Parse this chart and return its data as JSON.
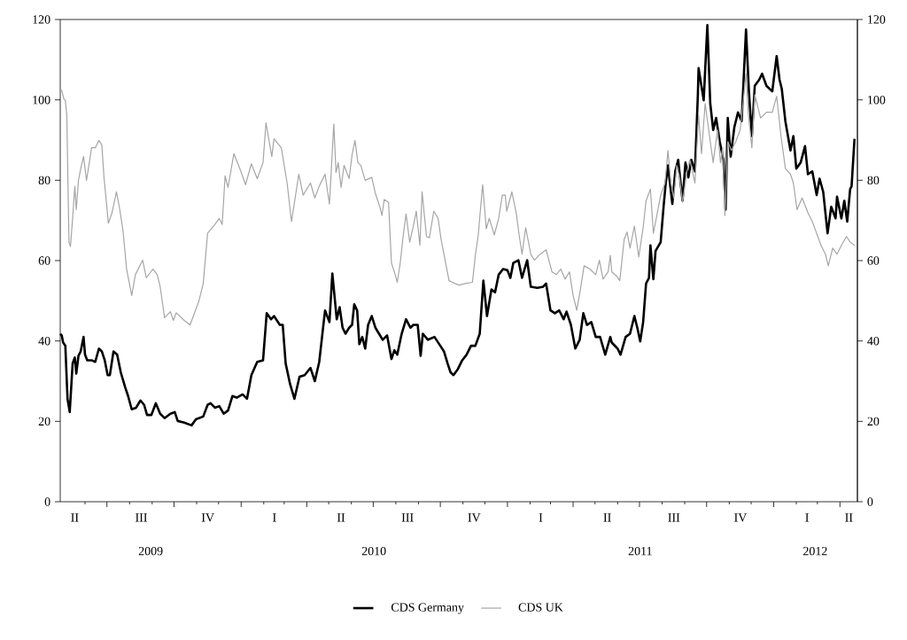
{
  "chart_data": {
    "type": "line",
    "xlim": [
      "2009-04-28",
      "2012-04-25"
    ],
    "annotations": [
      "II",
      "III",
      "IV",
      "I",
      "II",
      "III",
      "IV",
      "I",
      "II",
      "III",
      "IV",
      "I",
      "II"
    ],
    "xticks": [
      {
        "value": "2009-08-30",
        "label": "2009"
      },
      {
        "value": "2010-07-02",
        "label": "2010"
      },
      {
        "value": "2011-07-02",
        "label": "2011"
      },
      {
        "value": "2012-02-27",
        "label": "2012"
      },
      {
        "value": "2009-06-01",
        "label": null
      },
      {
        "value": "2009-07-01",
        "label": null
      },
      {
        "value": "2009-08-01",
        "label": null
      },
      {
        "value": "2009-09-01",
        "label": null
      },
      {
        "value": "2009-10-01",
        "label": null
      },
      {
        "value": "2009-11-01",
        "label": null
      },
      {
        "value": "2009-12-01",
        "label": null
      },
      {
        "value": "2010-01-01",
        "label": null
      },
      {
        "value": "2010-02-01",
        "label": null
      },
      {
        "value": "2010-03-01",
        "label": null
      },
      {
        "value": "2010-04-01",
        "label": null
      },
      {
        "value": "2010-05-01",
        "label": null
      },
      {
        "value": "2010-06-01",
        "label": null
      },
      {
        "value": "2010-07-01",
        "label": null
      },
      {
        "value": "2010-08-01",
        "label": null
      },
      {
        "value": "2010-09-01",
        "label": null
      },
      {
        "value": "2010-10-01",
        "label": null
      },
      {
        "value": "2010-11-01",
        "label": null
      },
      {
        "value": "2010-12-01",
        "label": null
      },
      {
        "value": "2011-01-01",
        "label": null
      },
      {
        "value": "2011-02-01",
        "label": null
      },
      {
        "value": "2011-03-01",
        "label": null
      },
      {
        "value": "2011-04-01",
        "label": null
      },
      {
        "value": "2011-05-01",
        "label": null
      },
      {
        "value": "2011-06-01",
        "label": null
      },
      {
        "value": "2011-07-01",
        "label": null
      },
      {
        "value": "2011-08-01",
        "label": null
      },
      {
        "value": "2011-09-01",
        "label": null
      },
      {
        "value": "2011-10-01",
        "label": null
      },
      {
        "value": "2011-11-01",
        "label": null
      },
      {
        "value": "2011-12-01",
        "label": null
      },
      {
        "value": "2012-01-01",
        "label": null
      },
      {
        "value": "2012-02-01",
        "label": null
      },
      {
        "value": "2012-03-01",
        "label": null
      },
      {
        "value": "2012-04-01",
        "label": null
      }
    ],
    "ylim": [
      0,
      120
    ],
    "yticks": [
      0,
      20,
      40,
      60,
      80,
      100,
      120
    ],
    "y2lim": [
      0,
      120
    ],
    "y2ticks": [
      0,
      20,
      40,
      60,
      80,
      100,
      120
    ],
    "legend": "bottom",
    "series": [
      {
        "name": "CDS Germany",
        "color": "#000000",
        "x": [
          "2009-04-28",
          "2009-04-30",
          "2009-05-02",
          "2009-05-05",
          "2009-05-08",
          "2009-05-11",
          "2009-05-15",
          "2009-05-18",
          "2009-05-20",
          "2009-05-23",
          "2009-05-26",
          "2009-05-30",
          "2009-06-01",
          "2009-06-04",
          "2009-06-10",
          "2009-06-15",
          "2009-06-20",
          "2009-06-24",
          "2009-06-28",
          "2009-07-02",
          "2009-07-05",
          "2009-07-10",
          "2009-07-15",
          "2009-07-20",
          "2009-07-26",
          "2009-07-30",
          "2009-08-04",
          "2009-08-10",
          "2009-08-16",
          "2009-08-21",
          "2009-08-25",
          "2009-08-31",
          "2009-09-06",
          "2009-09-12",
          "2009-09-18",
          "2009-09-26",
          "2009-10-02",
          "2009-10-06",
          "2009-10-15",
          "2009-10-25",
          "2009-10-31",
          "2009-11-10",
          "2009-11-16",
          "2009-11-20",
          "2009-11-26",
          "2009-12-02",
          "2009-12-08",
          "2009-12-14",
          "2009-12-20",
          "2009-12-26",
          "2010-01-03",
          "2010-01-09",
          "2010-01-15",
          "2010-01-23",
          "2010-01-31",
          "2010-02-05",
          "2010-02-11",
          "2010-02-15",
          "2010-02-23",
          "2010-02-27",
          "2010-03-03",
          "2010-03-09",
          "2010-03-15",
          "2010-03-22",
          "2010-03-29",
          "2010-04-06",
          "2010-04-12",
          "2010-04-18",
          "2010-04-26",
          "2010-05-02",
          "2010-05-06",
          "2010-05-12",
          "2010-05-16",
          "2010-05-20",
          "2010-05-24",
          "2010-05-29",
          "2010-06-02",
          "2010-06-05",
          "2010-06-09",
          "2010-06-12",
          "2010-06-16",
          "2010-06-20",
          "2010-06-24",
          "2010-06-29",
          "2010-07-04",
          "2010-07-09",
          "2010-07-14",
          "2010-07-20",
          "2010-07-26",
          "2010-07-30",
          "2010-08-03",
          "2010-08-09",
          "2010-08-15",
          "2010-08-21",
          "2010-08-25",
          "2010-08-31",
          "2010-09-04",
          "2010-09-07",
          "2010-09-14",
          "2010-09-23",
          "2010-10-01",
          "2010-10-06",
          "2010-10-11",
          "2010-10-15",
          "2010-10-19",
          "2010-10-25",
          "2010-10-31",
          "2010-11-06",
          "2010-11-12",
          "2010-11-18",
          "2010-11-24",
          "2010-11-29",
          "2010-12-04",
          "2010-12-10",
          "2010-12-15",
          "2010-12-20",
          "2010-12-26",
          "2011-01-01",
          "2011-01-05",
          "2011-01-09",
          "2011-01-16",
          "2011-01-21",
          "2011-01-28",
          "2011-02-02",
          "2011-02-11",
          "2011-02-19",
          "2011-02-23",
          "2011-03-01",
          "2011-03-07",
          "2011-03-13",
          "2011-03-19",
          "2011-03-23",
          "2011-03-29",
          "2011-04-04",
          "2011-04-10",
          "2011-04-15",
          "2011-04-20",
          "2011-04-26",
          "2011-05-02",
          "2011-05-08",
          "2011-05-15",
          "2011-05-22",
          "2011-05-24",
          "2011-06-01",
          "2011-06-05",
          "2011-06-12",
          "2011-06-18",
          "2011-06-24",
          "2011-06-28",
          "2011-07-02",
          "2011-07-06",
          "2011-07-10",
          "2011-07-14",
          "2011-07-16",
          "2011-07-20",
          "2011-07-23",
          "2011-07-30",
          "2011-08-03",
          "2011-08-06",
          "2011-08-09",
          "2011-08-15",
          "2011-08-19",
          "2011-08-23",
          "2011-08-29",
          "2011-09-02",
          "2011-09-06",
          "2011-09-10",
          "2011-09-15",
          "2011-09-19",
          "2011-09-20",
          "2011-09-27",
          "2011-10-02",
          "2011-10-06",
          "2011-10-10",
          "2011-10-14",
          "2011-10-19",
          "2011-10-24",
          "2011-10-27",
          "2011-10-30",
          "2011-11-03",
          "2011-11-08",
          "2011-11-13",
          "2011-11-18",
          "2011-11-24",
          "2011-11-28",
          "2011-12-02",
          "2011-12-06",
          "2011-12-12",
          "2011-12-16",
          "2011-12-22",
          "2011-12-30",
          "2012-01-05",
          "2012-01-09",
          "2012-01-12",
          "2012-01-17",
          "2012-01-24",
          "2012-01-28",
          "2012-02-01",
          "2012-02-07",
          "2012-02-13",
          "2012-02-17",
          "2012-02-23",
          "2012-02-29",
          "2012-03-04",
          "2012-03-09",
          "2012-03-15",
          "2012-03-20",
          "2012-03-26",
          "2012-03-28",
          "2012-04-03",
          "2012-04-07",
          "2012-04-11",
          "2012-04-15",
          "2012-04-17",
          "2012-04-21"
        ],
        "values": [
          41.8,
          41.4,
          39.6,
          38.8,
          25.6,
          22.3,
          34.4,
          35.9,
          31.9,
          36.3,
          37.4,
          41.0,
          36.6,
          35.2,
          35.2,
          34.8,
          38.1,
          37.4,
          35.2,
          31.5,
          31.5,
          37.4,
          36.6,
          32.2,
          28.5,
          26.3,
          23.0,
          23.4,
          25.2,
          24.1,
          21.6,
          21.6,
          24.5,
          21.9,
          20.8,
          21.9,
          22.3,
          20.1,
          19.7,
          19.0,
          20.5,
          21.2,
          24.1,
          24.5,
          23.4,
          23.8,
          21.9,
          22.7,
          26.3,
          25.9,
          26.7,
          25.6,
          31.5,
          34.8,
          35.2,
          46.9,
          45.4,
          46.2,
          44.0,
          44.0,
          34.4,
          29.3,
          25.6,
          31.1,
          31.5,
          33.3,
          30.0,
          34.8,
          47.6,
          44.7,
          56.8,
          45.4,
          48.4,
          43.3,
          41.8,
          43.3,
          44.0,
          49.1,
          47.6,
          39.2,
          41.0,
          38.1,
          44.0,
          46.2,
          43.3,
          41.8,
          40.3,
          41.4,
          35.5,
          37.7,
          36.6,
          41.8,
          45.4,
          43.3,
          44.0,
          44.0,
          36.3,
          41.8,
          40.3,
          41.0,
          38.8,
          37.4,
          34.4,
          32.2,
          31.5,
          33.0,
          35.2,
          36.6,
          38.8,
          38.8,
          41.8,
          55.0,
          46.2,
          52.8,
          52.1,
          56.5,
          57.9,
          57.6,
          55.7,
          59.4,
          60.1,
          55.7,
          60.1,
          53.5,
          53.2,
          53.5,
          54.3,
          47.6,
          46.9,
          47.6,
          45.4,
          47.3,
          44.0,
          38.1,
          40.3,
          46.9,
          44.0,
          44.7,
          41.0,
          41.0,
          36.6,
          41.0,
          39.6,
          38.1,
          36.6,
          41.0,
          41.8,
          46.2,
          43.3,
          39.9,
          44.7,
          54.3,
          55.7,
          63.8,
          55.4,
          62.4,
          64.6,
          73.4,
          79.3,
          83.7,
          74.1,
          82.2,
          85.1,
          74.9,
          84.4,
          80.7,
          85.1,
          82.2,
          101.3,
          107.9,
          99.9,
          118.6,
          99.1,
          92.5,
          95.5,
          89.6,
          85.1,
          72.7,
          95.5,
          85.9,
          93.2,
          96.9,
          94.7,
          117.5,
          102.1,
          91.0,
          103.5,
          105.0,
          106.5,
          103.5,
          102.1,
          110.9,
          105.0,
          102.8,
          94.7,
          87.4,
          91.0,
          82.9,
          84.4,
          88.5,
          81.5,
          82.2,
          76.3,
          80.4,
          77.1,
          66.8,
          73.4,
          70.5,
          75.9,
          70.5,
          74.9,
          69.7,
          77.8,
          78.5,
          90.3
        ]
      },
      {
        "name": "CDS UK",
        "color": "#a6a6a6",
        "x": [
          "2009-04-28",
          "2009-04-30",
          "2009-05-03",
          "2009-05-05",
          "2009-05-07",
          "2009-05-10",
          "2009-05-12",
          "2009-05-15",
          "2009-05-18",
          "2009-05-20",
          "2009-05-23",
          "2009-05-27",
          "2009-05-30",
          "2009-06-03",
          "2009-06-05",
          "2009-06-10",
          "2009-06-15",
          "2009-06-20",
          "2009-06-24",
          "2009-06-27",
          "2009-07-03",
          "2009-07-08",
          "2009-07-14",
          "2009-07-18",
          "2009-07-23",
          "2009-07-28",
          "2009-08-04",
          "2009-08-09",
          "2009-08-19",
          "2009-08-24",
          "2009-09-02",
          "2009-09-08",
          "2009-09-12",
          "2009-09-18",
          "2009-09-26",
          "2009-09-30",
          "2009-10-04",
          "2009-10-15",
          "2009-10-23",
          "2009-11-04",
          "2009-11-10",
          "2009-11-16",
          "2009-11-26",
          "2009-12-02",
          "2009-12-06",
          "2009-12-10",
          "2009-12-14",
          "2009-12-22",
          "2009-12-30",
          "2010-01-07",
          "2010-01-15",
          "2010-01-23",
          "2010-01-31",
          "2010-02-04",
          "2010-02-12",
          "2010-02-15",
          "2010-02-25",
          "2010-03-05",
          "2010-03-11",
          "2010-03-21",
          "2010-03-27",
          "2010-04-06",
          "2010-04-12",
          "2010-04-18",
          "2010-04-26",
          "2010-05-02",
          "2010-05-08",
          "2010-05-11",
          "2010-05-14",
          "2010-05-18",
          "2010-05-22",
          "2010-05-29",
          "2010-06-02",
          "2010-06-06",
          "2010-06-10",
          "2010-06-14",
          "2010-06-20",
          "2010-06-29",
          "2010-07-04",
          "2010-07-10",
          "2010-07-13",
          "2010-07-16",
          "2010-07-22",
          "2010-07-26",
          "2010-07-30",
          "2010-08-03",
          "2010-08-07",
          "2010-08-11",
          "2010-08-15",
          "2010-08-20",
          "2010-08-25",
          "2010-08-29",
          "2010-09-03",
          "2010-09-06",
          "2010-09-12",
          "2010-09-16",
          "2010-09-22",
          "2010-09-28",
          "2010-10-02",
          "2010-10-09",
          "2010-10-13",
          "2010-10-21",
          "2010-10-27",
          "2010-11-04",
          "2010-11-14",
          "2010-11-18",
          "2010-11-22",
          "2010-11-28",
          "2010-12-03",
          "2010-12-07",
          "2010-12-14",
          "2010-12-20",
          "2010-12-25",
          "2010-12-29",
          "2010-12-31",
          "2011-01-07",
          "2011-01-13",
          "2011-01-17",
          "2011-01-21",
          "2011-01-26",
          "2011-02-02",
          "2011-02-07",
          "2011-02-13",
          "2011-02-23",
          "2011-03-03",
          "2011-03-09",
          "2011-03-15",
          "2011-03-21",
          "2011-03-27",
          "2011-04-01",
          "2011-04-06",
          "2011-04-11",
          "2011-04-16",
          "2011-04-24",
          "2011-05-02",
          "2011-05-07",
          "2011-05-12",
          "2011-05-19",
          "2011-05-22",
          "2011-05-24",
          "2011-05-31",
          "2011-06-04",
          "2011-06-10",
          "2011-06-14",
          "2011-06-18",
          "2011-06-24",
          "2011-06-30",
          "2011-07-06",
          "2011-07-10",
          "2011-07-16",
          "2011-07-20",
          "2011-07-24",
          "2011-07-30",
          "2011-08-05",
          "2011-08-09",
          "2011-08-13",
          "2011-08-17",
          "2011-08-21",
          "2011-08-25",
          "2011-08-29",
          "2011-09-04",
          "2011-09-08",
          "2011-09-15",
          "2011-09-20",
          "2011-09-24",
          "2011-09-29",
          "2011-10-05",
          "2011-10-10",
          "2011-10-16",
          "2011-10-20",
          "2011-10-23",
          "2011-10-26",
          "2011-10-30",
          "2011-11-04",
          "2011-11-10",
          "2011-11-16",
          "2011-11-24",
          "2011-11-27",
          "2011-12-02",
          "2011-12-06",
          "2011-12-14",
          "2011-12-22",
          "2011-12-30",
          "2012-01-05",
          "2012-01-11",
          "2012-01-17",
          "2012-01-24",
          "2012-01-28",
          "2012-02-02",
          "2012-02-09",
          "2012-02-17",
          "2012-02-23",
          "2012-02-29",
          "2012-03-06",
          "2012-03-12",
          "2012-03-16",
          "2012-03-22",
          "2012-03-28",
          "2012-04-03",
          "2012-04-10",
          "2012-04-15",
          "2012-04-21"
        ],
        "values": [
          102.1,
          102.4,
          100.2,
          99.9,
          96.2,
          64.6,
          63.5,
          70.5,
          78.5,
          72.7,
          80.0,
          83.7,
          85.9,
          80.0,
          82.2,
          88.1,
          88.1,
          89.9,
          88.8,
          80.7,
          69.3,
          71.9,
          77.1,
          73.4,
          67.5,
          57.9,
          51.3,
          56.5,
          60.1,
          55.7,
          57.9,
          56.5,
          53.5,
          45.8,
          47.3,
          45.1,
          47.0,
          45.1,
          44.0,
          49.9,
          54.3,
          66.8,
          69.0,
          70.5,
          69.0,
          81.1,
          78.2,
          86.6,
          83.0,
          78.9,
          84.1,
          80.4,
          84.4,
          94.3,
          85.9,
          90.3,
          88.1,
          79.3,
          69.7,
          81.5,
          76.3,
          79.3,
          75.6,
          78.5,
          81.5,
          74.1,
          94.0,
          81.9,
          84.4,
          78.2,
          83.7,
          80.4,
          86.3,
          89.9,
          84.4,
          83.7,
          80.0,
          80.7,
          76.7,
          73.4,
          71.2,
          75.2,
          74.5,
          59.4,
          57.2,
          54.6,
          59.4,
          66.0,
          71.6,
          64.6,
          68.6,
          72.3,
          63.8,
          77.1,
          66.0,
          65.7,
          72.3,
          70.5,
          65.3,
          58.7,
          55.0,
          54.3,
          53.9,
          54.3,
          54.6,
          61.3,
          66.4,
          78.9,
          67.9,
          70.5,
          66.4,
          70.5,
          76.3,
          76.3,
          72.3,
          77.1,
          71.9,
          66.4,
          61.6,
          68.2,
          61.6,
          60.1,
          61.3,
          62.7,
          57.2,
          56.5,
          57.9,
          55.4,
          57.2,
          51.3,
          47.6,
          52.8,
          58.7,
          57.9,
          56.5,
          60.1,
          55.4,
          57.2,
          61.3,
          57.2,
          56.1,
          55.0,
          65.3,
          67.1,
          63.1,
          68.6,
          60.9,
          68.2,
          74.9,
          77.8,
          66.8,
          70.5,
          76.3,
          79.3,
          87.4,
          79.3,
          75.6,
          83.7,
          80.7,
          74.5,
          82.2,
          85.1,
          79.3,
          96.2,
          86.6,
          99.1,
          91.0,
          84.4,
          92.5,
          84.4,
          88.1,
          71.2,
          89.6,
          87.4,
          89.6,
          92.5,
          106.5,
          96.9,
          88.1,
          101.3,
          95.5,
          96.9,
          96.9,
          100.9,
          91.0,
          82.9,
          81.5,
          79.3,
          72.7,
          75.6,
          71.9,
          69.7,
          66.8,
          63.8,
          61.6,
          58.7,
          63.1,
          61.6,
          63.8,
          66.0,
          64.6,
          63.8
        ]
      }
    ]
  }
}
